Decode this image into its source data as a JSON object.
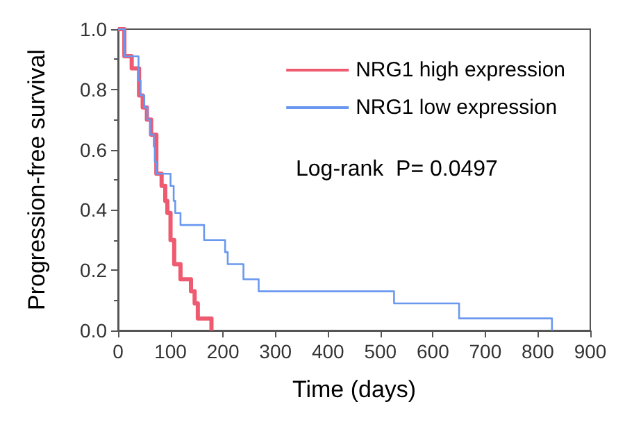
{
  "chart_data": {
    "type": "step",
    "xlabel": "Time (days)",
    "ylabel": "Progression-free survival",
    "xlim": [
      0,
      900
    ],
    "xticks": [
      0,
      100,
      200,
      300,
      400,
      500,
      600,
      700,
      800,
      900
    ],
    "ylim": [
      0,
      1
    ],
    "yticks": [
      {
        "value": 0,
        "label": "0.0"
      },
      {
        "value": 0.2,
        "label": "0.2"
      },
      {
        "value": 0.4,
        "label": "0.4"
      },
      {
        "value": 0.6,
        "label": "0.6"
      },
      {
        "value": 0.8,
        "label": "0.8"
      },
      {
        "value": 1,
        "label": "1.0"
      }
    ],
    "series": [
      {
        "name": "NRG1 high expression",
        "color": "#ee5a6f",
        "x": [
          0,
          12,
          26,
          40,
          47,
          55,
          63,
          73,
          83,
          90,
          94,
          100,
          107,
          119,
          139,
          146,
          152,
          178
        ],
        "values": [
          1,
          0.91,
          0.87,
          0.78,
          0.74,
          0.7,
          0.65,
          0.52,
          0.48,
          0.43,
          0.39,
          0.3,
          0.22,
          0.17,
          0.13,
          0.09,
          0.04,
          0
        ]
      },
      {
        "name": "NRG1 low expression",
        "color": "#6a98f0",
        "x": [
          0,
          12,
          39,
          43,
          50,
          56,
          61,
          68,
          70,
          73,
          100,
          106,
          109,
          119,
          164,
          204,
          209,
          239,
          268,
          526,
          650,
          827
        ],
        "values": [
          1,
          0.91,
          0.83,
          0.78,
          0.74,
          0.7,
          0.65,
          0.61,
          0.56,
          0.52,
          0.48,
          0.43,
          0.39,
          0.35,
          0.3,
          0.26,
          0.22,
          0.17,
          0.13,
          0.09,
          0.04,
          0
        ]
      }
    ],
    "annotations": [
      "Log-rank  P= 0.0497"
    ],
    "legend": "top right",
    "grid": false,
    "line_style": "solid",
    "marker": "none"
  }
}
